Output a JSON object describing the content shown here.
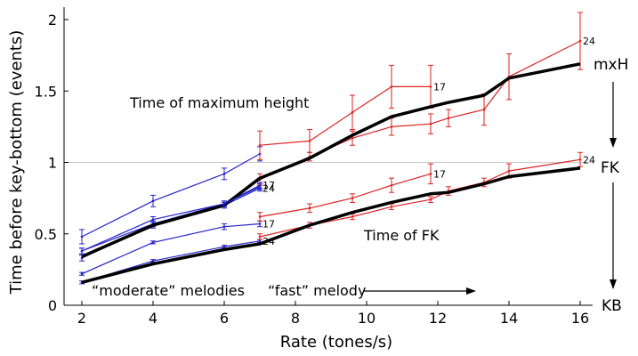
{
  "chart_data": {
    "type": "line",
    "xlabel": "Rate (tones/s)",
    "ylabel": "Time before key-bottom (events)",
    "xlim": [
      1.5,
      16.6
    ],
    "ylim": [
      0,
      2.1
    ],
    "xticks": [
      2,
      4,
      6,
      8,
      10,
      12,
      14,
      16
    ],
    "yticks": [
      0,
      0.5,
      1,
      1.5,
      2
    ],
    "ytick_labels": [
      "0",
      "0.5",
      "1",
      "1.5",
      "2"
    ],
    "reference_line": 1,
    "annotations": {
      "max_height": "Time of maximum height",
      "fk": "Time of FK",
      "moderate": "“moderate” melodies",
      "fast": "“fast” melody"
    },
    "side_labels": {
      "mxh": "mxH",
      "fk": "FK",
      "kb": "KB"
    },
    "colors": {
      "moderate": "#2222cc",
      "fast": "#dd2222",
      "mean": "#000000",
      "refline": "#c8c8c8"
    },
    "series": [
      {
        "group": "mxH",
        "kind": "moderate",
        "label": "",
        "x": [
          2,
          4,
          6,
          7
        ],
        "y": [
          0.48,
          0.73,
          0.92,
          1.06
        ],
        "err": [
          0.05,
          0.04,
          0.04,
          0.05
        ]
      },
      {
        "group": "mxH",
        "kind": "moderate",
        "label": "17",
        "x": [
          2,
          4,
          6,
          7
        ],
        "y": [
          0.38,
          0.57,
          0.71,
          0.84
        ],
        "err": [
          0.02,
          0.02,
          0.02,
          0.02
        ]
      },
      {
        "group": "mxH",
        "kind": "moderate",
        "label": "24",
        "x": [
          2,
          4,
          6,
          7
        ],
        "y": [
          0.33,
          0.56,
          0.7,
          0.82
        ],
        "err": [
          0.02,
          0.02,
          0.02,
          0.02
        ]
      },
      {
        "group": "mxH",
        "kind": "fast",
        "label": "17",
        "x": [
          7,
          8.4,
          9.6,
          10.7,
          11.8
        ],
        "y": [
          1.12,
          1.15,
          1.35,
          1.53,
          1.53
        ],
        "err": [
          0.1,
          0.08,
          0.12,
          0.15,
          0.15
        ]
      },
      {
        "group": "mxH",
        "kind": "fast",
        "label": "24",
        "x": [
          7,
          8.4,
          9.6,
          10.7,
          11.8,
          12.3,
          13.3,
          14,
          16
        ],
        "y": [
          0.88,
          1.04,
          1.17,
          1.25,
          1.27,
          1.31,
          1.37,
          1.6,
          1.85
        ],
        "err": [
          0.04,
          0.03,
          0.05,
          0.06,
          0.07,
          0.06,
          0.11,
          0.16,
          0.2
        ]
      },
      {
        "group": "mxH",
        "kind": "mean",
        "label": "",
        "x": [
          2,
          4,
          6,
          7,
          8.4,
          9.6,
          10.7,
          11.8,
          12.3,
          13.3,
          14,
          16
        ],
        "y": [
          0.34,
          0.56,
          0.7,
          0.89,
          1.03,
          1.19,
          1.32,
          1.39,
          1.42,
          1.47,
          1.59,
          1.69
        ],
        "err": null
      },
      {
        "group": "FK",
        "kind": "moderate",
        "label": "",
        "x": [
          2,
          4,
          6,
          7
        ],
        "y": [
          0.38,
          0.6,
          0.71,
          0.83
        ],
        "err": [
          0.02,
          0.02,
          0.02,
          0.02
        ]
      },
      {
        "group": "FK",
        "kind": "moderate",
        "label": "17",
        "x": [
          2,
          4,
          6,
          7
        ],
        "y": [
          0.22,
          0.44,
          0.55,
          0.57
        ],
        "err": [
          0.01,
          0.01,
          0.02,
          0.02
        ]
      },
      {
        "group": "FK",
        "kind": "moderate",
        "label": "24",
        "x": [
          2,
          4,
          6,
          7
        ],
        "y": [
          0.16,
          0.31,
          0.41,
          0.45
        ],
        "err": [
          0.01,
          0.01,
          0.01,
          0.01
        ]
      },
      {
        "group": "FK",
        "kind": "fast",
        "label": "17",
        "x": [
          7,
          8.4,
          9.6,
          10.7,
          11.8
        ],
        "y": [
          0.62,
          0.68,
          0.75,
          0.84,
          0.92
        ],
        "err": [
          0.03,
          0.03,
          0.03,
          0.05,
          0.07
        ]
      },
      {
        "group": "FK",
        "kind": "fast",
        "label": "24",
        "x": [
          7,
          8.4,
          9.6,
          10.7,
          11.8,
          12.3,
          13.3,
          14,
          16
        ],
        "y": [
          0.48,
          0.56,
          0.62,
          0.69,
          0.74,
          0.8,
          0.86,
          0.94,
          1.02
        ],
        "err": [
          0.02,
          0.02,
          0.02,
          0.02,
          0.02,
          0.03,
          0.03,
          0.05,
          0.05
        ]
      },
      {
        "group": "FK",
        "kind": "mean",
        "label": "",
        "x": [
          2,
          4,
          6,
          7,
          8.4,
          9.6,
          10.7,
          11.8,
          12.3,
          13.3,
          14,
          16
        ],
        "y": [
          0.16,
          0.29,
          0.39,
          0.43,
          0.56,
          0.65,
          0.72,
          0.78,
          0.79,
          0.85,
          0.9,
          0.96
        ],
        "err": null
      }
    ]
  }
}
